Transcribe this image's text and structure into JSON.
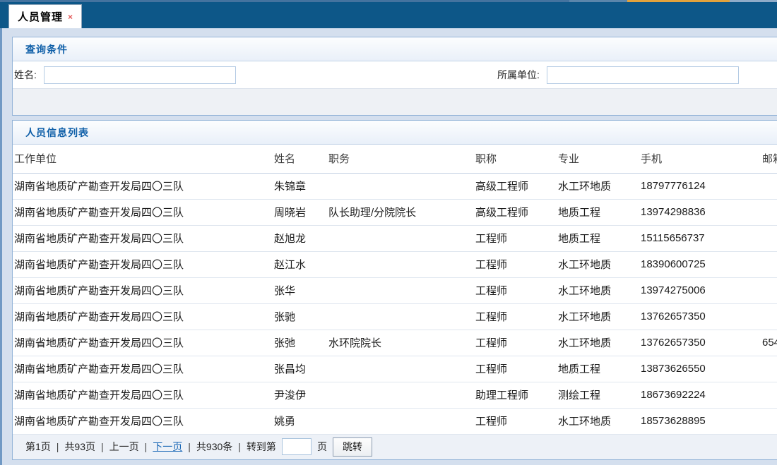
{
  "tab": {
    "title": "人员管理",
    "close_glyph": "×"
  },
  "query_panel": {
    "title": "查询条件",
    "fields": {
      "name": {
        "label": "姓名:",
        "value": "",
        "placeholder": ""
      },
      "unit": {
        "label": "所属单位:",
        "value": "",
        "placeholder": ""
      }
    }
  },
  "list_panel": {
    "title": "人员信息列表",
    "columns": [
      "工作单位",
      "姓名",
      "职务",
      "职称",
      "专业",
      "手机",
      "邮箱"
    ],
    "rows": [
      [
        "湖南省地质矿产勘查开发局四〇三队",
        "朱锦章",
        "",
        "高级工程师",
        "水工环地质",
        "18797776124",
        ""
      ],
      [
        "湖南省地质矿产勘查开发局四〇三队",
        "周晓岩",
        "队长助理/分院院长",
        "高级工程师",
        "地质工程",
        "13974298836",
        ""
      ],
      [
        "湖南省地质矿产勘查开发局四〇三队",
        "赵旭龙",
        "",
        "工程师",
        "地质工程",
        "15115656737",
        ""
      ],
      [
        "湖南省地质矿产勘查开发局四〇三队",
        "赵江水",
        "",
        "工程师",
        "水工环地质",
        "18390600725",
        ""
      ],
      [
        "湖南省地质矿产勘查开发局四〇三队",
        "张华",
        "",
        "工程师",
        "水工环地质",
        "13974275006",
        ""
      ],
      [
        "湖南省地质矿产勘查开发局四〇三队",
        "张驰",
        "",
        "工程师",
        "水工环地质",
        "13762657350",
        ""
      ],
      [
        "湖南省地质矿产勘查开发局四〇三队",
        "张弛",
        "水环院院长",
        "工程师",
        "水工环地质",
        "13762657350",
        "654"
      ],
      [
        "湖南省地质矿产勘查开发局四〇三队",
        "张昌均",
        "",
        "工程师",
        "地质工程",
        "13873626550",
        ""
      ],
      [
        "湖南省地质矿产勘查开发局四〇三队",
        "尹浚伊",
        "",
        "助理工程师",
        "测绘工程",
        "18673692224",
        ""
      ],
      [
        "湖南省地质矿产勘查开发局四〇三队",
        "姚勇",
        "",
        "工程师",
        "水工环地质",
        "18573628895",
        ""
      ]
    ]
  },
  "pagination": {
    "page_label": "第1页",
    "pages_label": "共93页",
    "prev_label": "上一页",
    "next_label": "下一页",
    "items_label": "共930条",
    "goto_label": "转到第",
    "page_unit": "页",
    "goto_value": "",
    "jump_label": "跳转",
    "separator": "|"
  },
  "colors": {
    "topbar": "#0d5788",
    "panel_title": "#0f5fa8",
    "link": "#1464b4",
    "close_icon": "#e25555",
    "top_strip_orange": "#e2a23c",
    "panel_border": "#94b4d8",
    "outer_background": "#d4dfee"
  }
}
